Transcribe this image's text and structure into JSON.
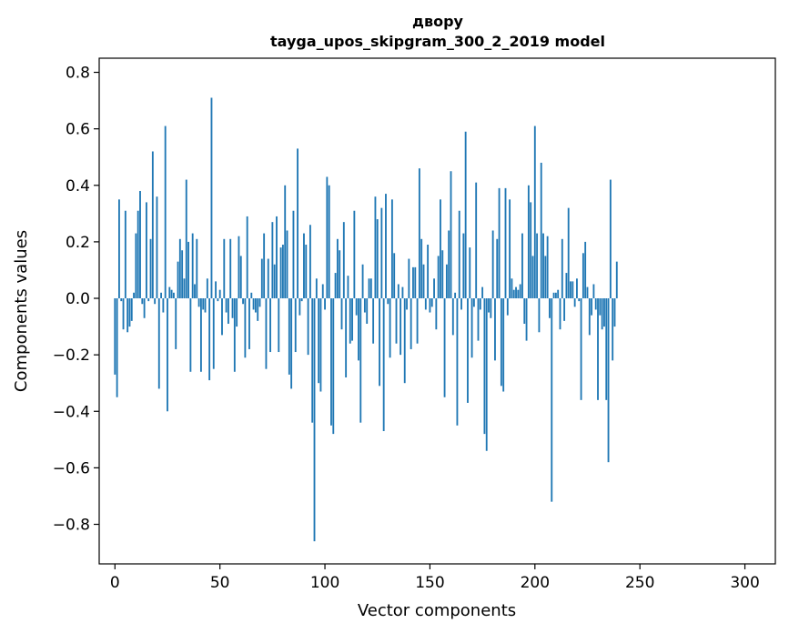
{
  "chart_data": {
    "type": "bar",
    "title": "двору",
    "subtitle": "tayga_upos_skipgram_300_2_2019 model",
    "xlabel": "Vector components",
    "ylabel": "Components values",
    "xlim": [
      -7.5,
      314.5
    ],
    "ylim": [
      -0.94,
      0.85
    ],
    "xticks": [
      0,
      50,
      100,
      150,
      200,
      250,
      300
    ],
    "xtick_labels": [
      "0",
      "50",
      "100",
      "150",
      "200",
      "250",
      "300"
    ],
    "yticks": [
      -0.8,
      -0.6,
      -0.4,
      -0.2,
      0.0,
      0.2,
      0.4,
      0.6,
      0.8
    ],
    "ytick_labels": [
      "−0.8",
      "−0.6",
      "−0.4",
      "−0.2",
      "0.0",
      "0.2",
      "0.4",
      "0.6",
      "0.8"
    ],
    "grid": false,
    "bar_color": "#1f77b4",
    "x_start": 0,
    "values": [
      -0.27,
      -0.35,
      0.35,
      -0.01,
      -0.11,
      0.31,
      -0.12,
      -0.1,
      -0.08,
      0.02,
      0.23,
      0.31,
      0.38,
      -0.02,
      -0.07,
      0.34,
      -0.01,
      0.21,
      0.52,
      -0.02,
      0.36,
      -0.32,
      0.02,
      -0.05,
      0.61,
      -0.4,
      0.04,
      0.03,
      0.02,
      -0.18,
      0.13,
      0.21,
      0.17,
      0.07,
      0.42,
      0.2,
      -0.26,
      0.23,
      0.05,
      0.21,
      -0.03,
      -0.26,
      -0.04,
      -0.05,
      0.07,
      -0.29,
      0.71,
      -0.25,
      0.06,
      -0.01,
      0.03,
      -0.13,
      0.21,
      -0.05,
      -0.09,
      0.21,
      -0.07,
      -0.26,
      -0.1,
      0.22,
      0.15,
      -0.02,
      -0.21,
      0.29,
      -0.18,
      0.02,
      -0.04,
      -0.05,
      -0.08,
      -0.03,
      0.14,
      0.23,
      -0.25,
      0.14,
      -0.19,
      0.27,
      0.12,
      0.29,
      -0.19,
      0.18,
      0.19,
      0.4,
      0.24,
      -0.27,
      -0.32,
      0.31,
      -0.19,
      0.53,
      -0.06,
      -0.01,
      0.23,
      0.19,
      -0.2,
      0.26,
      -0.44,
      -0.86,
      0.07,
      -0.3,
      -0.33,
      0.05,
      -0.04,
      0.43,
      0.4,
      -0.45,
      -0.48,
      0.09,
      0.21,
      0.17,
      -0.11,
      0.27,
      -0.28,
      0.08,
      -0.16,
      -0.15,
      0.31,
      -0.06,
      -0.22,
      -0.44,
      0.12,
      -0.05,
      -0.09,
      0.07,
      0.07,
      -0.16,
      0.36,
      0.28,
      -0.31,
      0.32,
      -0.47,
      0.37,
      -0.02,
      -0.21,
      0.35,
      0.16,
      -0.16,
      0.05,
      -0.2,
      0.04,
      -0.3,
      -0.04,
      0.14,
      -0.18,
      0.11,
      0.11,
      -0.16,
      0.46,
      0.21,
      0.12,
      -0.04,
      0.19,
      -0.05,
      -0.03,
      0.07,
      -0.11,
      0.15,
      0.35,
      0.17,
      -0.35,
      0.12,
      0.24,
      0.45,
      -0.13,
      0.02,
      -0.45,
      0.31,
      -0.04,
      0.23,
      0.59,
      -0.37,
      0.18,
      -0.21,
      -0.03,
      0.41,
      -0.15,
      -0.04,
      0.04,
      -0.48,
      -0.54,
      -0.05,
      -0.07,
      0.24,
      -0.22,
      0.21,
      0.39,
      -0.31,
      -0.33,
      0.39,
      -0.06,
      0.35,
      0.07,
      0.03,
      0.04,
      0.03,
      0.05,
      0.23,
      -0.09,
      -0.15,
      0.4,
      0.34,
      0.15,
      0.61,
      0.23,
      -0.12,
      0.48,
      0.23,
      0.15,
      0.22,
      -0.07,
      -0.72,
      0.02,
      0.02,
      0.03,
      -0.11,
      0.21,
      -0.08,
      0.09,
      0.32,
      0.06,
      0.06,
      -0.03,
      0.07,
      -0.01,
      -0.36,
      0.16,
      0.2,
      0.04,
      -0.13,
      -0.06,
      0.05,
      -0.04,
      -0.36,
      -0.06,
      -0.11,
      -0.1,
      -0.36,
      -0.58,
      0.42,
      -0.22,
      -0.1,
      0.13
    ]
  }
}
